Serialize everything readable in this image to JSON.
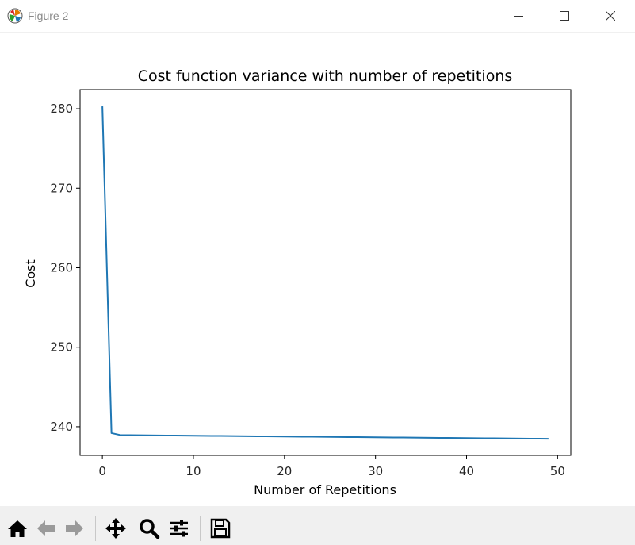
{
  "window": {
    "title": "Figure 2",
    "icons": [
      "matplotlib-icon",
      "minimize-icon",
      "maximize-icon",
      "close-icon"
    ]
  },
  "toolbar": {
    "buttons": [
      {
        "name": "home-button",
        "icon": "home-icon"
      },
      {
        "name": "back-button",
        "icon": "arrow-left-icon"
      },
      {
        "name": "forward-button",
        "icon": "arrow-right-icon"
      },
      {
        "name": "pan-button",
        "icon": "move-icon"
      },
      {
        "name": "zoom-button",
        "icon": "magnifier-icon"
      },
      {
        "name": "configure-subplots-button",
        "icon": "sliders-icon"
      },
      {
        "name": "save-button",
        "icon": "floppy-disk-icon"
      }
    ]
  },
  "colors": {
    "line": "#1f77b4",
    "axes": "#000000",
    "text": "#262626",
    "toolbar_bg": "#f0f0f0"
  },
  "chart_data": {
    "type": "line",
    "title": "Cost function variance with number of repetitions",
    "xlabel": "Number of Repetitions",
    "ylabel": "Cost",
    "xlim": [
      -2.45,
      51.45
    ],
    "ylim": [
      236.4,
      282.4
    ],
    "xticks": [
      0,
      10,
      20,
      30,
      40,
      50
    ],
    "yticks": [
      240,
      250,
      260,
      270,
      280
    ],
    "grid": false,
    "legend": "none",
    "series": [
      {
        "x": [
          0,
          1,
          2,
          3,
          4,
          5,
          6,
          7,
          8,
          9,
          10,
          11,
          12,
          13,
          14,
          15,
          16,
          17,
          18,
          19,
          20,
          21,
          22,
          23,
          24,
          25,
          26,
          27,
          28,
          29,
          30,
          31,
          32,
          33,
          34,
          35,
          36,
          37,
          38,
          39,
          40,
          41,
          42,
          43,
          44,
          45,
          46,
          47,
          48,
          49
        ],
        "y": [
          280.3,
          239.2,
          238.95,
          238.94,
          238.93,
          238.92,
          238.91,
          238.9,
          238.89,
          238.88,
          238.87,
          238.86,
          238.85,
          238.84,
          238.83,
          238.82,
          238.81,
          238.8,
          238.79,
          238.78,
          238.77,
          238.76,
          238.75,
          238.74,
          238.73,
          238.72,
          238.71,
          238.7,
          238.69,
          238.68,
          238.67,
          238.66,
          238.65,
          238.64,
          238.63,
          238.62,
          238.61,
          238.6,
          238.59,
          238.58,
          238.57,
          238.56,
          238.55,
          238.54,
          238.53,
          238.52,
          238.51,
          238.5,
          238.49,
          238.48
        ]
      }
    ]
  }
}
